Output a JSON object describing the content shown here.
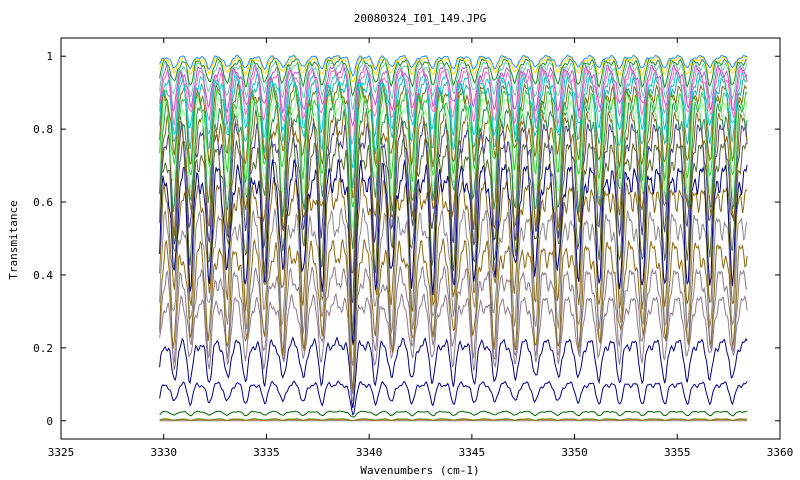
{
  "chart_data": {
    "type": "line",
    "title": "20080324_I01_149.JPG",
    "xlabel": "Wavenumbers (cm-1)",
    "ylabel": "Transmitance",
    "xlim": [
      3325,
      3360
    ],
    "ylim": [
      -0.05,
      1.05
    ],
    "x_ticks": [
      "3325",
      "3330",
      "3335",
      "3340",
      "3345",
      "3350",
      "3355",
      "3360"
    ],
    "y_ticks": [
      "0",
      "0.2",
      "0.4",
      "0.6",
      "0.8",
      "1"
    ],
    "x_range": [
      3329.8,
      3358.4
    ],
    "grid": false,
    "legend": "none",
    "absorption_lines": [
      3329.7,
      3330.5,
      3331.3,
      3332.2,
      3333.1,
      3334.0,
      3334.9,
      3335.8,
      3336.8,
      3337.7,
      3339.2,
      3340.3,
      3341.1,
      3342.1,
      3343.1,
      3344.1,
      3345.1,
      3346.1,
      3347.1,
      3348.1,
      3349.2,
      3350.2,
      3351.2,
      3352.2,
      3353.3,
      3354.4,
      3355.5,
      3356.6,
      3357.7
    ],
    "series": [
      {
        "baseline": 0.0,
        "depth": 0.0,
        "color": "#8c8c8c"
      },
      {
        "baseline": 0.003,
        "depth": 0.002,
        "color": "#d2691e"
      },
      {
        "baseline": 0.005,
        "depth": 0.003,
        "color": "#6b8e23"
      },
      {
        "baseline": 0.025,
        "depth": 0.01,
        "color": "#006400"
      },
      {
        "baseline": 0.1,
        "depth": 0.05,
        "color": "#00008b"
      },
      {
        "baseline": 0.21,
        "depth": 0.1,
        "color": "#000080"
      },
      {
        "baseline": 0.32,
        "depth": 0.16,
        "color": "#8b7b8b"
      },
      {
        "baseline": 0.39,
        "depth": 0.2,
        "color": "#8b7b8b"
      },
      {
        "baseline": 0.46,
        "depth": 0.24,
        "color": "#8b6914"
      },
      {
        "baseline": 0.54,
        "depth": 0.26,
        "color": "#8b8b8b"
      },
      {
        "baseline": 0.62,
        "depth": 0.28,
        "color": "#8b6914"
      },
      {
        "baseline": 0.67,
        "depth": 0.28,
        "color": "#000080"
      },
      {
        "baseline": 0.73,
        "depth": 0.28,
        "color": "#556b2f"
      },
      {
        "baseline": 0.78,
        "depth": 0.27,
        "color": "#483d8b"
      },
      {
        "baseline": 0.81,
        "depth": 0.26,
        "color": "#8b6914"
      },
      {
        "baseline": 0.84,
        "depth": 0.24,
        "color": "#2e8b57"
      },
      {
        "baseline": 0.865,
        "depth": 0.22,
        "color": "#98fb98"
      },
      {
        "baseline": 0.885,
        "depth": 0.2,
        "color": "#32cd32"
      },
      {
        "baseline": 0.9,
        "depth": 0.18,
        "color": "#8b6914"
      },
      {
        "baseline": 0.92,
        "depth": 0.16,
        "color": "#20b2aa"
      },
      {
        "baseline": 0.935,
        "depth": 0.14,
        "color": "#00ced1"
      },
      {
        "baseline": 0.95,
        "depth": 0.12,
        "color": "#ff69b4"
      },
      {
        "baseline": 0.96,
        "depth": 0.1,
        "color": "#ba55d3"
      },
      {
        "baseline": 0.975,
        "depth": 0.08,
        "color": "#66cdaa"
      },
      {
        "baseline": 0.985,
        "depth": 0.06,
        "color": "#228b22"
      },
      {
        "baseline": 0.993,
        "depth": 0.04,
        "color": "#ffd700"
      },
      {
        "baseline": 0.998,
        "depth": 0.03,
        "color": "#1e90ff"
      }
    ]
  }
}
